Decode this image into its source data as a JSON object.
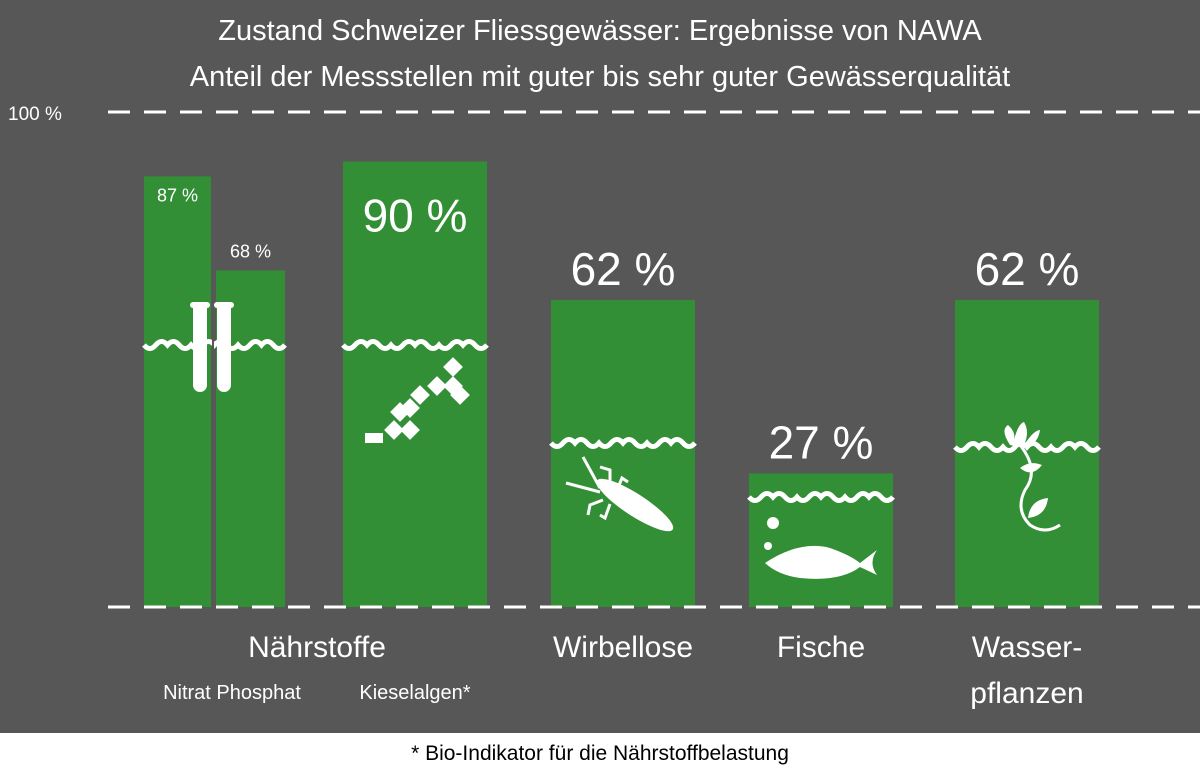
{
  "chart_data": {
    "type": "bar",
    "title": "Zustand Schweizer Fliessgewässer: Ergebnisse von NAWA",
    "subtitle": "Anteil der Messstellen mit guter bis sehr guter Gewässerqualität",
    "ylim": [
      0,
      100
    ],
    "y_tick_label": "100 %",
    "grid": "dashed lines at 0 and 100",
    "bars": [
      {
        "id": "nitrat",
        "label": "Nitrat",
        "value": 87,
        "value_label": "87 %",
        "icon": "test-tubes-icon"
      },
      {
        "id": "phosphat",
        "label": "Phosphat",
        "value": 68,
        "value_label": "68 %",
        "icon": "test-tubes-icon"
      },
      {
        "id": "kieselalgen",
        "label": "Kieselalgen*",
        "value": 90,
        "value_label": "90 %",
        "icon": "diatom-chain-icon"
      },
      {
        "id": "wirbellose",
        "label": "Wirbellose",
        "value": 62,
        "value_label": "62 %",
        "icon": "insect-larva-icon"
      },
      {
        "id": "fische",
        "label": "Fische",
        "value": 27,
        "value_label": "27 %",
        "icon": "fish-icon"
      },
      {
        "id": "wasserpflanzen",
        "label": "Wasser-pflanzen",
        "value": 62,
        "value_label": "62 %",
        "icon": "water-plant-icon"
      }
    ],
    "groups": {
      "naehrstoffe": "Nährstoffe",
      "nitrat_phosphat": "Nitrat Phosphat",
      "kieselalgen": "Kieselalgen*",
      "wirbellose": "Wirbellose",
      "fische": "Fische",
      "wasser_line1": "Wasser-",
      "wasser_line2": "pflanzen"
    },
    "footnote": "* Bio-Indikator für die Nährstoffbelastung",
    "colors": {
      "background": "#575757",
      "bar": "#338f36",
      "text": "#ffffff",
      "footer_bg": "#ffffff",
      "footer_text": "#000000"
    }
  }
}
